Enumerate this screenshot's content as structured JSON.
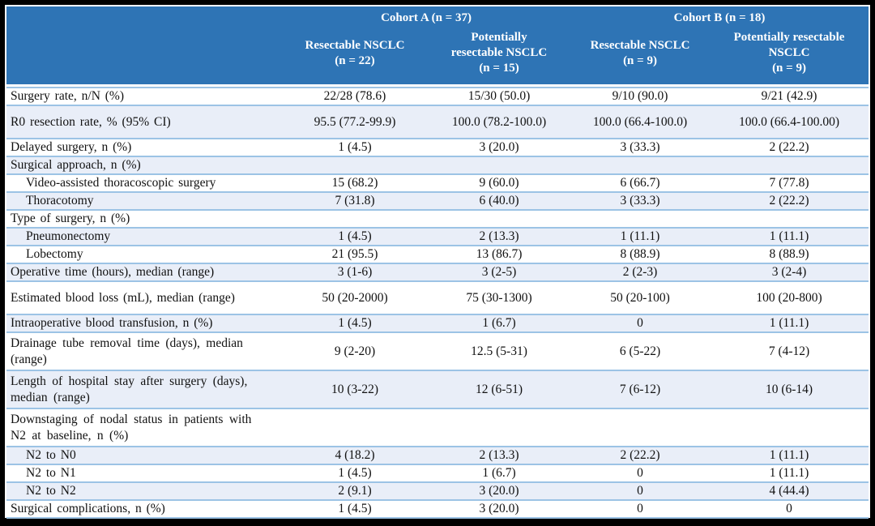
{
  "colors": {
    "header_bg": "#2E74B5",
    "header_text": "#FFFFFF",
    "row_shade": "#E9EEF8",
    "separator": "#9CC3E5",
    "frame": "#000000"
  },
  "table": {
    "cohort_a": "Cohort A (n = 37)",
    "cohort_b": "Cohort B (n = 18)",
    "columns": [
      "Resectable NSCLC\n(n = 22)",
      "Potentially\nresectable NSCLC\n(n = 15)",
      "Resectable NSCLC\n(n = 9)",
      "Potentially resectable\nNSCLC\n(n = 9)"
    ],
    "rows": [
      {
        "label": "Surgery rate, n/N (%)",
        "values": [
          "22/28 (78.6)",
          "15/30 (50.0)",
          "9/10 (90.0)",
          "9/21 (42.9)"
        ],
        "shade": false,
        "indent": false,
        "size": "normal"
      },
      {
        "label": "R0 resection rate, % (95% CI)",
        "values": [
          "95.5 (77.2-99.9)",
          "100.0 (78.2-100.0)",
          "100.0 (66.4-100.0)",
          "100.0 (66.4-100.00)"
        ],
        "shade": true,
        "indent": false,
        "size": "tall"
      },
      {
        "label": "Delayed surgery, n (%)",
        "values": [
          "1 (4.5)",
          "3 (20.0)",
          "3 (33.3)",
          "2 (22.2)"
        ],
        "shade": false,
        "indent": false,
        "size": "normal"
      },
      {
        "label": "Surgical approach, n (%)",
        "values": [
          "",
          "",
          "",
          ""
        ],
        "shade": true,
        "indent": false,
        "size": "normal"
      },
      {
        "label": "Video-assisted thoracoscopic surgery",
        "values": [
          "15 (68.2)",
          "9 (60.0)",
          "6 (66.7)",
          "7 (77.8)"
        ],
        "shade": false,
        "indent": true,
        "size": "normal"
      },
      {
        "label": "Thoracotomy",
        "values": [
          "7 (31.8)",
          "6 (40.0)",
          "3 (33.3)",
          "2 (22.2)"
        ],
        "shade": true,
        "indent": true,
        "size": "normal"
      },
      {
        "label": "Type of surgery, n (%)",
        "values": [
          "",
          "",
          "",
          ""
        ],
        "shade": false,
        "indent": false,
        "size": "normal"
      },
      {
        "label": "Pneumonectomy",
        "values": [
          "1 (4.5)",
          "2 (13.3)",
          "1 (11.1)",
          "1 (11.1)"
        ],
        "shade": true,
        "indent": true,
        "size": "normal"
      },
      {
        "label": "Lobectomy",
        "values": [
          "21 (95.5)",
          "13 (86.7)",
          "8 (88.9)",
          "8 (88.9)"
        ],
        "shade": false,
        "indent": true,
        "size": "normal"
      },
      {
        "label": "Operative time (hours), median (range)",
        "values": [
          "3 (1-6)",
          "3 (2-5)",
          "2 (2-3)",
          "3 (2-4)"
        ],
        "shade": true,
        "indent": false,
        "size": "normal"
      },
      {
        "label": "Estimated blood loss (mL), median (range)",
        "values": [
          "50 (20-2000)",
          "75 (30-1300)",
          "50 (20-100)",
          "100 (20-800)"
        ],
        "shade": false,
        "indent": false,
        "size": "tall"
      },
      {
        "label": "Intraoperative blood transfusion, n (%)",
        "values": [
          "1 (4.5)",
          "1 (6.7)",
          "0",
          "1 (11.1)"
        ],
        "shade": true,
        "indent": false,
        "size": "normal"
      },
      {
        "label": "Drainage tube removal time (days), median\n(range)",
        "values": [
          "9 (2-20)",
          "12.5 (5-31)",
          "6 (5-22)",
          "7 (4-12)"
        ],
        "shade": false,
        "indent": false,
        "size": "twoline"
      },
      {
        "label": "Length of hospital stay after surgery (days),\nmedian (range)",
        "values": [
          "10 (3-22)",
          "12 (6-51)",
          "7 (6-12)",
          "10 (6-14)"
        ],
        "shade": true,
        "indent": false,
        "size": "twoline"
      },
      {
        "label": "Downstaging of nodal status in patients with\nN2 at baseline, n (%)",
        "values": [
          "",
          "",
          "",
          ""
        ],
        "shade": false,
        "indent": false,
        "size": "twoline"
      },
      {
        "label": "N2 to N0",
        "values": [
          "4 (18.2)",
          "2 (13.3)",
          "2 (22.2)",
          "1 (11.1)"
        ],
        "shade": true,
        "indent": true,
        "size": "normal"
      },
      {
        "label": "N2 to N1",
        "values": [
          "1 (4.5)",
          "1 (6.7)",
          "0",
          "1 (11.1)"
        ],
        "shade": false,
        "indent": true,
        "size": "normal"
      },
      {
        "label": "N2 to N2",
        "values": [
          "2 (9.1)",
          "3 (20.0)",
          "0",
          "4 (44.4)"
        ],
        "shade": true,
        "indent": true,
        "size": "normal"
      },
      {
        "label": "Surgical complications, n (%)",
        "values": [
          "1 (4.5)",
          "3 (20.0)",
          "0",
          "0"
        ],
        "shade": false,
        "indent": false,
        "size": "normal"
      }
    ]
  }
}
